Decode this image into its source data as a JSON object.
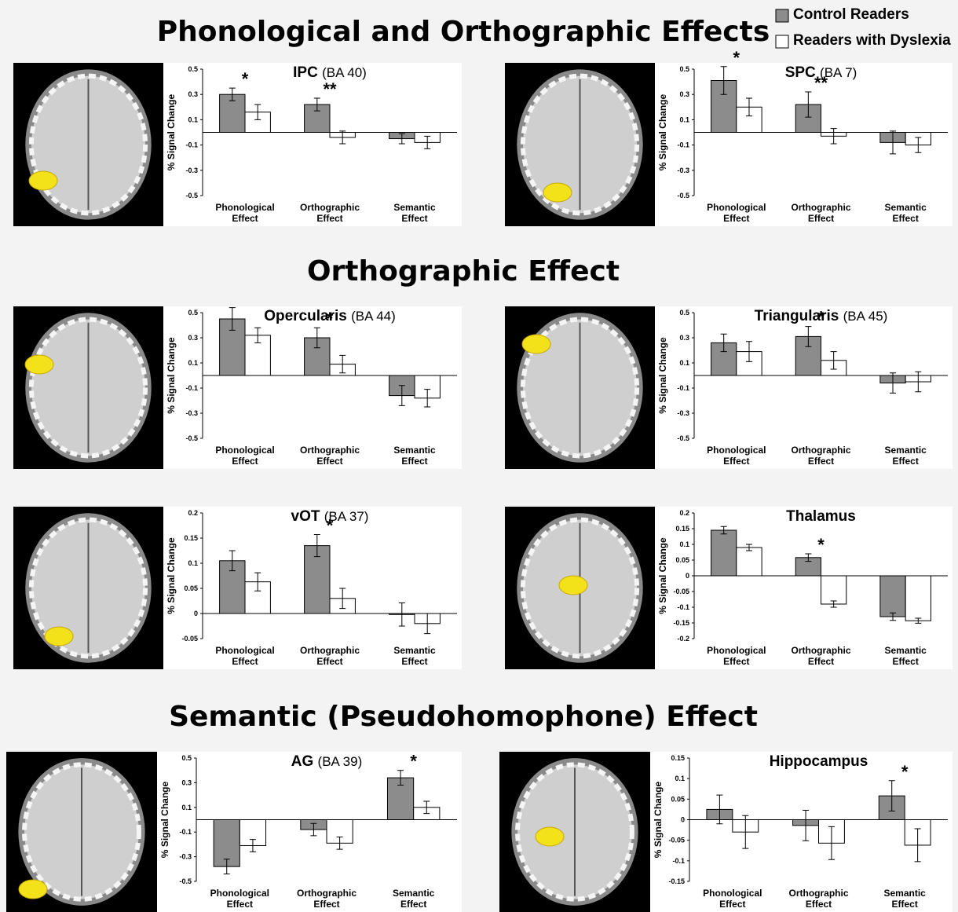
{
  "sections": [
    "Phonological and Orthographic Effects",
    "Orthographic Effect",
    "Semantic (Pseudohomophone) Effect"
  ],
  "chart_data": [
    {
      "type": "bar",
      "title": "IPC",
      "subtitle": "(BA 40)",
      "y_label": "% Signal Change",
      "categories": [
        "Phonological Effect",
        "Orthographic Effect",
        "Semantic Effect"
      ],
      "series": [
        {
          "name": "Control Readers",
          "color": "#8c8c8c",
          "values": [
            0.3,
            0.22,
            -0.05
          ],
          "errors": [
            0.05,
            0.05,
            0.04
          ]
        },
        {
          "name": "Readers with Dyslexia",
          "color": "#ffffff",
          "values": [
            0.16,
            -0.04,
            -0.08
          ],
          "errors": [
            0.06,
            0.05,
            0.05
          ]
        }
      ],
      "ylim": [
        -0.5,
        0.5
      ],
      "yticks": [
        0.5,
        0.3,
        0.1,
        -0.1,
        -0.3,
        -0.5
      ],
      "annotations": [
        {
          "text": "*",
          "index": 0
        },
        {
          "text": "**",
          "index": 1
        }
      ]
    },
    {
      "type": "bar",
      "title": "SPC",
      "subtitle": "(BA 7)",
      "y_label": "% Signal Change",
      "categories": [
        "Phonological Effect",
        "Orthographic Effect",
        "Semantic Effect"
      ],
      "series": [
        {
          "name": "Control Readers",
          "color": "#8c8c8c",
          "values": [
            0.41,
            0.22,
            -0.08
          ],
          "errors": [
            0.11,
            0.1,
            0.09
          ]
        },
        {
          "name": "Readers with Dyslexia",
          "color": "#ffffff",
          "values": [
            0.2,
            -0.03,
            -0.1
          ],
          "errors": [
            0.07,
            0.06,
            0.06
          ]
        }
      ],
      "ylim": [
        -0.5,
        0.5
      ],
      "yticks": [
        0.5,
        0.3,
        0.1,
        -0.1,
        -0.3,
        -0.5
      ],
      "annotations": [
        {
          "text": "*",
          "index": 0
        },
        {
          "text": "**",
          "index": 1
        }
      ]
    },
    {
      "type": "bar",
      "title": "Opercularis",
      "subtitle": "(BA 44)",
      "y_label": "% Signal Change",
      "categories": [
        "Phonological Effect",
        "Orthographic Effect",
        "Semantic Effect"
      ],
      "series": [
        {
          "name": "Control Readers",
          "color": "#8c8c8c",
          "values": [
            0.45,
            0.3,
            -0.16
          ],
          "errors": [
            0.09,
            0.08,
            0.08
          ]
        },
        {
          "name": "Readers with Dyslexia",
          "color": "#ffffff",
          "values": [
            0.32,
            0.09,
            -0.18
          ],
          "errors": [
            0.06,
            0.07,
            0.07
          ]
        }
      ],
      "ylim": [
        -0.5,
        0.5
      ],
      "yticks": [
        0.5,
        0.3,
        0.1,
        -0.1,
        -0.3,
        -0.5
      ],
      "annotations": [
        {
          "text": "*",
          "index": 1
        }
      ]
    },
    {
      "type": "bar",
      "title": "Triangularis",
      "subtitle": "(BA 45)",
      "y_label": "% Signal Change",
      "categories": [
        "Phonological Effect",
        "Orthographic Effect",
        "Semantic Effect"
      ],
      "series": [
        {
          "name": "Control Readers",
          "color": "#8c8c8c",
          "values": [
            0.26,
            0.31,
            -0.06
          ],
          "errors": [
            0.07,
            0.08,
            0.08
          ]
        },
        {
          "name": "Readers with Dyslexia",
          "color": "#ffffff",
          "values": [
            0.19,
            0.12,
            -0.05
          ],
          "errors": [
            0.08,
            0.07,
            0.08
          ]
        }
      ],
      "ylim": [
        -0.5,
        0.5
      ],
      "yticks": [
        0.5,
        0.3,
        0.1,
        -0.1,
        -0.3,
        -0.5
      ],
      "annotations": [
        {
          "text": "*",
          "index": 1
        }
      ]
    },
    {
      "type": "bar",
      "title": "vOT",
      "subtitle": "(BA 37)",
      "y_label": "% Signal Change",
      "categories": [
        "Phonological Effect",
        "Orthographic Effect",
        "Semantic Effect"
      ],
      "series": [
        {
          "name": "Control Readers",
          "color": "#8c8c8c",
          "values": [
            0.105,
            0.135,
            -0.002
          ],
          "errors": [
            0.02,
            0.022,
            0.023
          ]
        },
        {
          "name": "Readers with Dyslexia",
          "color": "#ffffff",
          "values": [
            0.063,
            0.03,
            -0.02
          ],
          "errors": [
            0.018,
            0.02,
            0.02
          ]
        }
      ],
      "ylim": [
        -0.05,
        0.2
      ],
      "yticks": [
        0.2,
        0.15,
        0.1,
        0.05,
        0,
        -0.05
      ],
      "annotations": [
        {
          "text": "*",
          "index": 1
        }
      ]
    },
    {
      "type": "bar",
      "title": "Thalamus",
      "y_label": "% Signal Change",
      "categories": [
        "Phonological Effect",
        "Orthographic Effect",
        "Semantic Effect"
      ],
      "series": [
        {
          "name": "Control Readers",
          "color": "#8c8c8c",
          "values": [
            0.145,
            0.058,
            -0.13
          ],
          "errors": [
            0.012,
            0.012,
            0.012
          ]
        },
        {
          "name": "Readers with Dyslexia",
          "color": "#ffffff",
          "values": [
            0.09,
            -0.09,
            -0.143
          ],
          "errors": [
            0.01,
            0.01,
            0.008
          ]
        }
      ],
      "ylim": [
        -0.2,
        0.2
      ],
      "yticks": [
        0.2,
        0.15,
        0.1,
        0.05,
        0,
        -0.05,
        -0.1,
        -0.15,
        -0.2
      ],
      "annotations": [
        {
          "text": "*",
          "index": 1
        }
      ]
    },
    {
      "type": "bar",
      "title": "AG",
      "subtitle": "(BA 39)",
      "y_label": "% Signal Change",
      "categories": [
        "Phonological Effect",
        "Orthographic Effect",
        "Semantic Effect"
      ],
      "series": [
        {
          "name": "Control Readers",
          "color": "#8c8c8c",
          "values": [
            -0.38,
            -0.08,
            0.34
          ],
          "errors": [
            0.06,
            0.05,
            0.06
          ]
        },
        {
          "name": "Readers with Dyslexia",
          "color": "#ffffff",
          "values": [
            -0.21,
            -0.19,
            0.1
          ],
          "errors": [
            0.05,
            0.05,
            0.05
          ]
        }
      ],
      "ylim": [
        -0.5,
        0.5
      ],
      "yticks": [
        0.5,
        0.3,
        0.1,
        -0.1,
        -0.3,
        -0.5
      ],
      "annotations": [
        {
          "text": "*",
          "index": 2
        }
      ]
    },
    {
      "type": "bar",
      "title": "Hippocampus",
      "y_label": "% Signal Change",
      "categories": [
        "Phonological Effect",
        "Orthographic Effect",
        "Semantic Effect"
      ],
      "series": [
        {
          "name": "Control Readers",
          "color": "#8c8c8c",
          "values": [
            0.025,
            -0.014,
            0.058
          ],
          "errors": [
            0.035,
            0.037,
            0.037
          ]
        },
        {
          "name": "Readers with Dyslexia",
          "color": "#ffffff",
          "values": [
            -0.03,
            -0.057,
            -0.062
          ],
          "errors": [
            0.04,
            0.04,
            0.04
          ]
        }
      ],
      "ylim": [
        -0.15,
        0.15
      ],
      "yticks": [
        0.15,
        0.1,
        0.05,
        0,
        -0.05,
        -0.1,
        -0.15
      ],
      "annotations": [
        {
          "text": "*",
          "index": 2
        }
      ]
    }
  ]
}
